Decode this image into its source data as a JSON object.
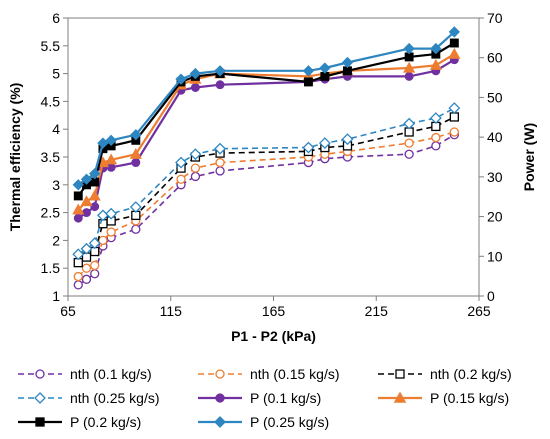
{
  "chart_data": {
    "type": "line",
    "xlabel": "P1 - P2 (kPa)",
    "ylabel_left": "Thermal efficiency (%)",
    "ylabel_right": "Power (W)",
    "xlim": [
      65,
      265
    ],
    "ylim_left": [
      1,
      6
    ],
    "ylim_right": [
      0,
      70
    ],
    "xticks": [
      "65",
      "115",
      "165",
      "215",
      "265"
    ],
    "yticks_left": [
      "1",
      "1.5",
      "2",
      "2.5",
      "3",
      "3.5",
      "4",
      "4.5",
      "5",
      "5.5",
      "6"
    ],
    "yticks_right": [
      "0",
      "10",
      "20",
      "30",
      "40",
      "50",
      "60",
      "70"
    ],
    "grid": false,
    "legend_position": "bottom",
    "series": [
      {
        "name": "nth (0.1 kg/s)",
        "axis": "left",
        "style": "dashed",
        "marker": "circle-open",
        "color": "#7030A0",
        "points": [
          [
            70,
            1.2
          ],
          [
            74,
            1.3
          ],
          [
            78,
            1.4
          ],
          [
            82,
            1.9
          ],
          [
            86,
            2.05
          ],
          [
            98,
            2.2
          ],
          [
            120,
            3.0
          ],
          [
            127,
            3.15
          ],
          [
            139,
            3.25
          ],
          [
            182,
            3.4
          ],
          [
            190,
            3.47
          ],
          [
            201,
            3.5
          ],
          [
            231,
            3.55
          ],
          [
            244,
            3.7
          ],
          [
            253,
            3.9
          ]
        ]
      },
      {
        "name": "nth (0.15 kg/s)",
        "axis": "left",
        "style": "dashed",
        "marker": "circle-open",
        "color": "#ED7D31",
        "points": [
          [
            70,
            1.35
          ],
          [
            74,
            1.5
          ],
          [
            78,
            1.55
          ],
          [
            82,
            2.0
          ],
          [
            86,
            2.15
          ],
          [
            98,
            2.35
          ],
          [
            120,
            3.1
          ],
          [
            127,
            3.3
          ],
          [
            139,
            3.4
          ],
          [
            182,
            3.5
          ],
          [
            190,
            3.55
          ],
          [
            201,
            3.6
          ],
          [
            231,
            3.75
          ],
          [
            244,
            3.85
          ],
          [
            253,
            3.95
          ]
        ]
      },
      {
        "name": "nth (0.2 kg/s)",
        "axis": "left",
        "style": "dashed",
        "marker": "square-open",
        "color": "#000000",
        "points": [
          [
            70,
            1.6
          ],
          [
            74,
            1.7
          ],
          [
            78,
            1.8
          ],
          [
            82,
            2.3
          ],
          [
            86,
            2.35
          ],
          [
            98,
            2.45
          ],
          [
            120,
            3.3
          ],
          [
            127,
            3.5
          ],
          [
            139,
            3.57
          ],
          [
            182,
            3.6
          ],
          [
            190,
            3.67
          ],
          [
            201,
            3.7
          ],
          [
            231,
            3.95
          ],
          [
            244,
            4.05
          ],
          [
            253,
            4.22
          ]
        ]
      },
      {
        "name": "nth (0.25 kg/s)",
        "axis": "left",
        "style": "dashed",
        "marker": "diamond-open",
        "color": "#2E86C1",
        "points": [
          [
            70,
            1.75
          ],
          [
            74,
            1.85
          ],
          [
            78,
            1.95
          ],
          [
            82,
            2.45
          ],
          [
            86,
            2.48
          ],
          [
            98,
            2.6
          ],
          [
            120,
            3.4
          ],
          [
            127,
            3.55
          ],
          [
            139,
            3.65
          ],
          [
            182,
            3.67
          ],
          [
            190,
            3.75
          ],
          [
            201,
            3.82
          ],
          [
            231,
            4.1
          ],
          [
            244,
            4.2
          ],
          [
            253,
            4.38
          ]
        ]
      },
      {
        "name": "P (0.1 kg/s)",
        "axis": "right",
        "style": "solid",
        "marker": "circle",
        "color": "#7030A0",
        "points": [
          [
            70,
            19.6
          ],
          [
            74,
            21.0
          ],
          [
            78,
            22.5
          ],
          [
            82,
            32.2
          ],
          [
            86,
            32.4
          ],
          [
            98,
            33.6
          ],
          [
            120,
            51.8
          ],
          [
            127,
            52.5
          ],
          [
            139,
            53.2
          ],
          [
            182,
            53.9
          ],
          [
            190,
            54.6
          ],
          [
            201,
            55.3
          ],
          [
            231,
            55.3
          ],
          [
            244,
            56.7
          ],
          [
            253,
            59.5
          ]
        ]
      },
      {
        "name": "P (0.15 kg/s)",
        "axis": "right",
        "style": "solid",
        "marker": "triangle",
        "color": "#ED7D31",
        "points": [
          [
            70,
            21.7
          ],
          [
            74,
            23.8
          ],
          [
            78,
            25.2
          ],
          [
            82,
            33.6
          ],
          [
            86,
            34.3
          ],
          [
            98,
            35.7
          ],
          [
            120,
            53.2
          ],
          [
            127,
            54.6
          ],
          [
            139,
            56.0
          ],
          [
            182,
            55.3
          ],
          [
            190,
            56.0
          ],
          [
            201,
            56.7
          ],
          [
            231,
            57.4
          ],
          [
            244,
            58.1
          ],
          [
            253,
            60.9
          ]
        ]
      },
      {
        "name": "P (0.2 kg/s)",
        "axis": "right",
        "style": "solid",
        "marker": "square",
        "color": "#000000",
        "points": [
          [
            70,
            25.2
          ],
          [
            74,
            28.0
          ],
          [
            78,
            28.7
          ],
          [
            82,
            37.1
          ],
          [
            86,
            37.8
          ],
          [
            98,
            39.2
          ],
          [
            120,
            53.9
          ],
          [
            127,
            55.3
          ],
          [
            139,
            56.0
          ],
          [
            182,
            53.9
          ],
          [
            190,
            55.3
          ],
          [
            201,
            56.7
          ],
          [
            231,
            60.2
          ],
          [
            244,
            60.9
          ],
          [
            253,
            63.7
          ]
        ]
      },
      {
        "name": "P (0.25 kg/s)",
        "axis": "right",
        "style": "solid",
        "marker": "diamond",
        "color": "#2E86C1",
        "points": [
          [
            70,
            28.0
          ],
          [
            74,
            29.4
          ],
          [
            78,
            30.8
          ],
          [
            82,
            38.5
          ],
          [
            86,
            39.2
          ],
          [
            98,
            40.6
          ],
          [
            120,
            54.6
          ],
          [
            127,
            56.0
          ],
          [
            139,
            56.7
          ],
          [
            182,
            56.7
          ],
          [
            190,
            57.4
          ],
          [
            201,
            58.8
          ],
          [
            231,
            62.3
          ],
          [
            244,
            62.3
          ],
          [
            253,
            66.5
          ]
        ]
      }
    ]
  }
}
